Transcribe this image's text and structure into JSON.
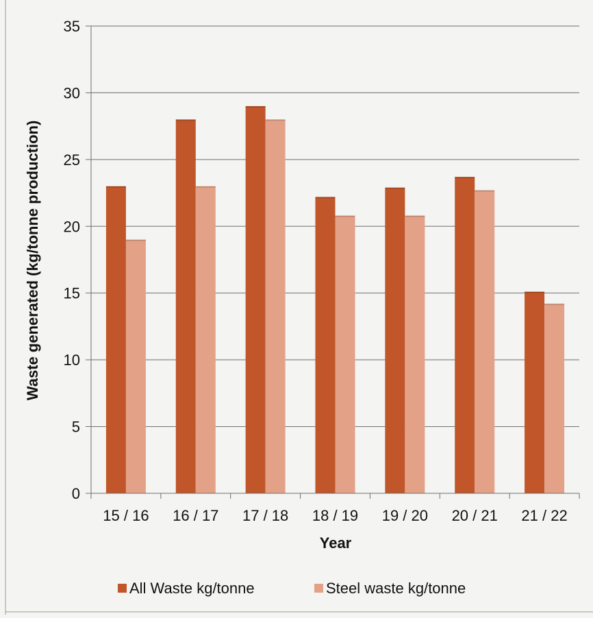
{
  "chart_data": {
    "type": "bar",
    "title": "",
    "xlabel": "Year",
    "ylabel": "Waste generated (kg/tonne production)",
    "categories": [
      "15 / 16",
      "16 / 17",
      "17 / 18",
      "18 / 19",
      "19 / 20",
      "20 / 21",
      "21 / 22"
    ],
    "series": [
      {
        "name": "All Waste kg/tonne",
        "color": "#c0562a",
        "values": [
          23,
          28,
          29,
          22.2,
          22.9,
          23.7,
          15.1
        ]
      },
      {
        "name": "Steel waste kg/tonne",
        "color": "#e3a288",
        "values": [
          19,
          23,
          28,
          20.8,
          20.8,
          22.7,
          14.2
        ]
      }
    ],
    "ylim": [
      0,
      35
    ],
    "yticks": [
      0,
      5,
      10,
      15,
      20,
      25,
      30,
      35
    ],
    "grid": true,
    "legend_position": "bottom"
  }
}
